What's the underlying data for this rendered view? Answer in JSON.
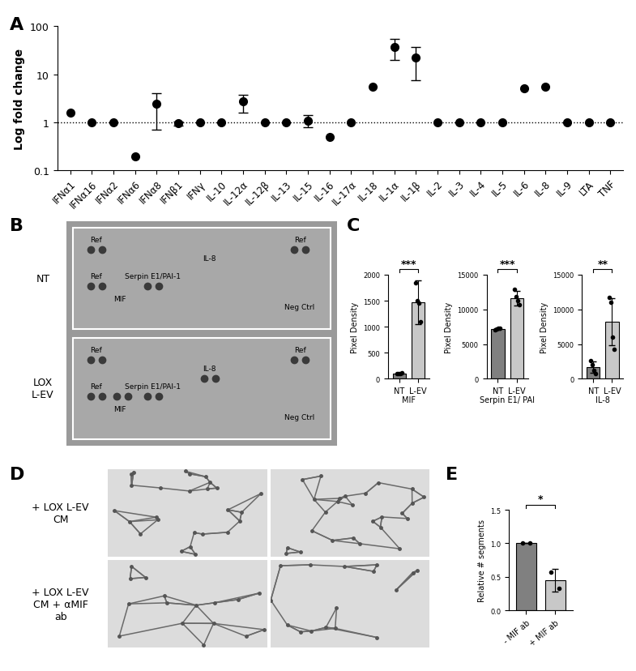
{
  "chart_data": [
    {
      "panel": "A",
      "type": "scatter",
      "categories": [
        "IFNα1",
        "IFNα16",
        "IFNα2",
        "IFNα6",
        "IFNα8",
        "IFNβ1",
        "IFNγ",
        "IL-10",
        "IL-12α",
        "IL-12β",
        "IL-13",
        "IL-15",
        "IL-16",
        "IL-17α",
        "IL-18",
        "IL-1α",
        "IL-1β",
        "IL-2",
        "IL-3",
        "IL-4",
        "IL-5",
        "IL-6",
        "IL-8",
        "IL-9",
        "LTA",
        "TNF"
      ],
      "values": [
        1.6,
        1,
        1,
        0.2,
        2.4,
        0.95,
        1,
        1,
        2.7,
        1,
        1,
        1.1,
        0.5,
        1,
        5.5,
        37,
        22,
        1,
        1,
        1,
        1,
        5,
        5.5,
        1,
        1,
        1
      ],
      "errors": [
        null,
        null,
        null,
        null,
        1.7,
        0.1,
        null,
        null,
        1.1,
        null,
        null,
        0.3,
        null,
        null,
        null,
        17,
        14.5,
        null,
        null,
        null,
        null,
        null,
        null,
        null,
        null,
        null
      ],
      "reference_line": 1,
      "y_label": "Log fold change",
      "log": "y",
      "ylim": [
        0.1,
        100
      ],
      "yticks": [
        0.1,
        1,
        10,
        100
      ],
      "color": "#000000",
      "marker": "o"
    },
    {
      "panel": "C",
      "type": "bar",
      "categories": [
        "NT",
        "L-EV"
      ],
      "values": [
        100,
        1470
      ],
      "errors": [
        10,
        420
      ],
      "points": [
        [
          95,
          100,
          105,
          110
        ],
        [
          1850,
          1500,
          1450,
          1100
        ]
      ],
      "colors": [
        "#808080",
        "#c8c8c8"
      ],
      "y_label": "Pixel Density",
      "x_label": "MIF",
      "significance": "***",
      "ylim": [
        0,
        2000
      ],
      "yticks": [
        0,
        500,
        1000,
        1500,
        2000
      ]
    },
    {
      "panel": "",
      "type": "bar",
      "categories": [
        "NT",
        "L-EV"
      ],
      "values": [
        7200,
        11600
      ],
      "errors": [
        100,
        1000
      ],
      "points": [
        [
          7100,
          7200,
          7250,
          7300
        ],
        [
          12900,
          11800,
          11200,
          10700
        ]
      ],
      "colors": [
        "#808080",
        "#c8c8c8"
      ],
      "y_label": "Pixel Density",
      "x_label": "Serpin E1/ PAI",
      "significance": "***",
      "ylim": [
        0,
        15000
      ],
      "yticks": [
        0,
        5000,
        10000,
        15000
      ]
    },
    {
      "panel": "",
      "type": "bar",
      "categories": [
        "NT",
        "L-EV"
      ],
      "values": [
        1700,
        8200
      ],
      "errors": [
        800,
        3400
      ],
      "points": [
        [
          2600,
          2000,
          1200,
          800
        ],
        [
          11700,
          11000,
          6000,
          4300
        ]
      ],
      "colors": [
        "#808080",
        "#c8c8c8"
      ],
      "y_label": "Pixel Density",
      "x_label": "IL-8",
      "significance": "**",
      "ylim": [
        0,
        15000
      ],
      "yticks": [
        0,
        5000,
        10000,
        15000
      ]
    },
    {
      "panel": "E",
      "type": "bar",
      "categories": [
        "- MIF ab",
        "+ MIF ab"
      ],
      "values": [
        1.0,
        0.45
      ],
      "errors": [
        0,
        0.17
      ],
      "points": [
        [
          1.0,
          1.0
        ],
        [
          0.57,
          0.33
        ]
      ],
      "colors": [
        "#808080",
        "#c8c8c8"
      ],
      "y_label": "Relative # segments",
      "significance": "*",
      "ylim": [
        0,
        1.5
      ],
      "yticks": [
        {
          "value": 0,
          "label": "0.0"
        },
        {
          "value": 0.5,
          "label": "0.5"
        },
        {
          "value": 1.0,
          "label": "1.0"
        },
        {
          "value": 1.5,
          "label": "1.5"
        }
      ]
    }
  ],
  "blot": {
    "panel": "B",
    "labels": [
      "Ref",
      "Ref",
      "Ref",
      "MIF",
      "Serpin E1/PAI-1",
      "IL-8",
      "Neg Ctrl"
    ],
    "membranes": [
      {
        "name": "NT",
        "spots": [
          "Ref",
          "Ref",
          "Ref",
          "Serpin E1/PAI-1"
        ]
      },
      {
        "name": "LOX\nL-EV",
        "spots": [
          "Ref",
          "Ref",
          "Ref",
          "MIF",
          "Serpin E1/PAI-1",
          "IL-8"
        ]
      }
    ]
  },
  "images": {
    "panel": "D",
    "rows": [
      "+ LOX L-EV\nCM",
      "+ LOX L-EV\nCM + αMIF\nab"
    ]
  }
}
